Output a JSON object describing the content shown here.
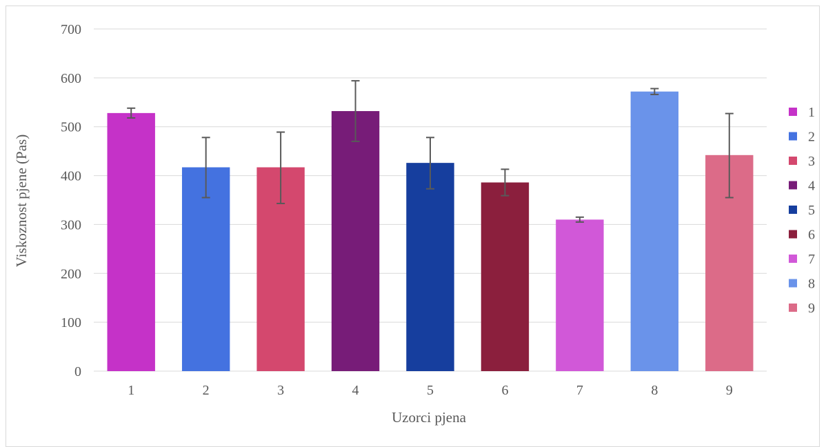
{
  "chart_data": {
    "type": "bar",
    "title": "",
    "xlabel": "Uzorci pjena",
    "ylabel": "Viskoznost pjene (Pas)",
    "ylim": [
      0,
      700
    ],
    "yticks": [
      0,
      100,
      200,
      300,
      400,
      500,
      600,
      700
    ],
    "grid": true,
    "legend_position": "right",
    "categories": [
      "1",
      "2",
      "3",
      "4",
      "5",
      "6",
      "7",
      "8",
      "9"
    ],
    "values": [
      528,
      417,
      417,
      532,
      426,
      386,
      310,
      572,
      442
    ],
    "error_low": [
      518,
      355,
      343,
      470,
      373,
      359,
      305,
      566,
      355
    ],
    "error_high": [
      538,
      478,
      489,
      594,
      478,
      413,
      315,
      578,
      527
    ],
    "colors": [
      "#c532c8",
      "#4472e0",
      "#d4486e",
      "#771c78",
      "#163e9e",
      "#8b1f3d",
      "#d158d8",
      "#6a93ea",
      "#dc6b88"
    ],
    "legend": [
      "1",
      "2",
      "3",
      "4",
      "5",
      "6",
      "7",
      "8",
      "9"
    ]
  }
}
